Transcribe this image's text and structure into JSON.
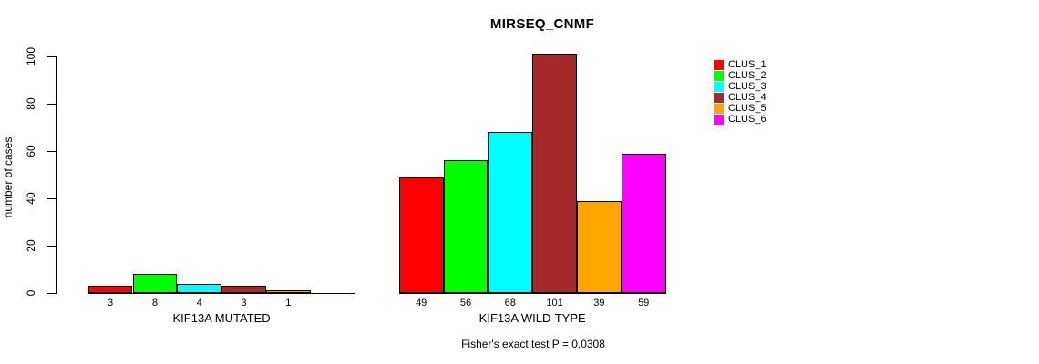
{
  "chart_data": {
    "type": "bar",
    "title": "MIRSEQ_CNMF",
    "ylabel": "number of cases",
    "ylim": [
      0,
      105
    ],
    "yticks": [
      0,
      20,
      40,
      60,
      80,
      100
    ],
    "grid": false,
    "legend_position": "right-outside",
    "categories": [
      "KIF13A MUTATED",
      "KIF13A WILD-TYPE"
    ],
    "series": [
      {
        "name": "CLUS_1",
        "color": "#FF0000",
        "values": [
          3,
          49
        ]
      },
      {
        "name": "CLUS_2",
        "color": "#00FF00",
        "values": [
          8,
          56
        ]
      },
      {
        "name": "CLUS_3",
        "color": "#00FFFF",
        "values": [
          4,
          68
        ]
      },
      {
        "name": "CLUS_4",
        "color": "#A52A2A",
        "values": [
          3,
          101
        ]
      },
      {
        "name": "CLUS_5",
        "color": "#FFA500",
        "values": [
          1,
          39
        ]
      },
      {
        "name": "CLUS_6",
        "color": "#FF00FF",
        "values": [
          0,
          59
        ]
      }
    ],
    "bar_value_labels": {
      "KIF13A MUTATED": [
        "3",
        "8",
        "4",
        "3",
        "1",
        ""
      ],
      "KIF13A WILD-TYPE": [
        "49",
        "56",
        "68",
        "101",
        "39",
        "59"
      ]
    },
    "footnote": "Fisher's exact test P = 0.0308",
    "axis_color": "#000000",
    "background_color": "#FFFFFF"
  }
}
